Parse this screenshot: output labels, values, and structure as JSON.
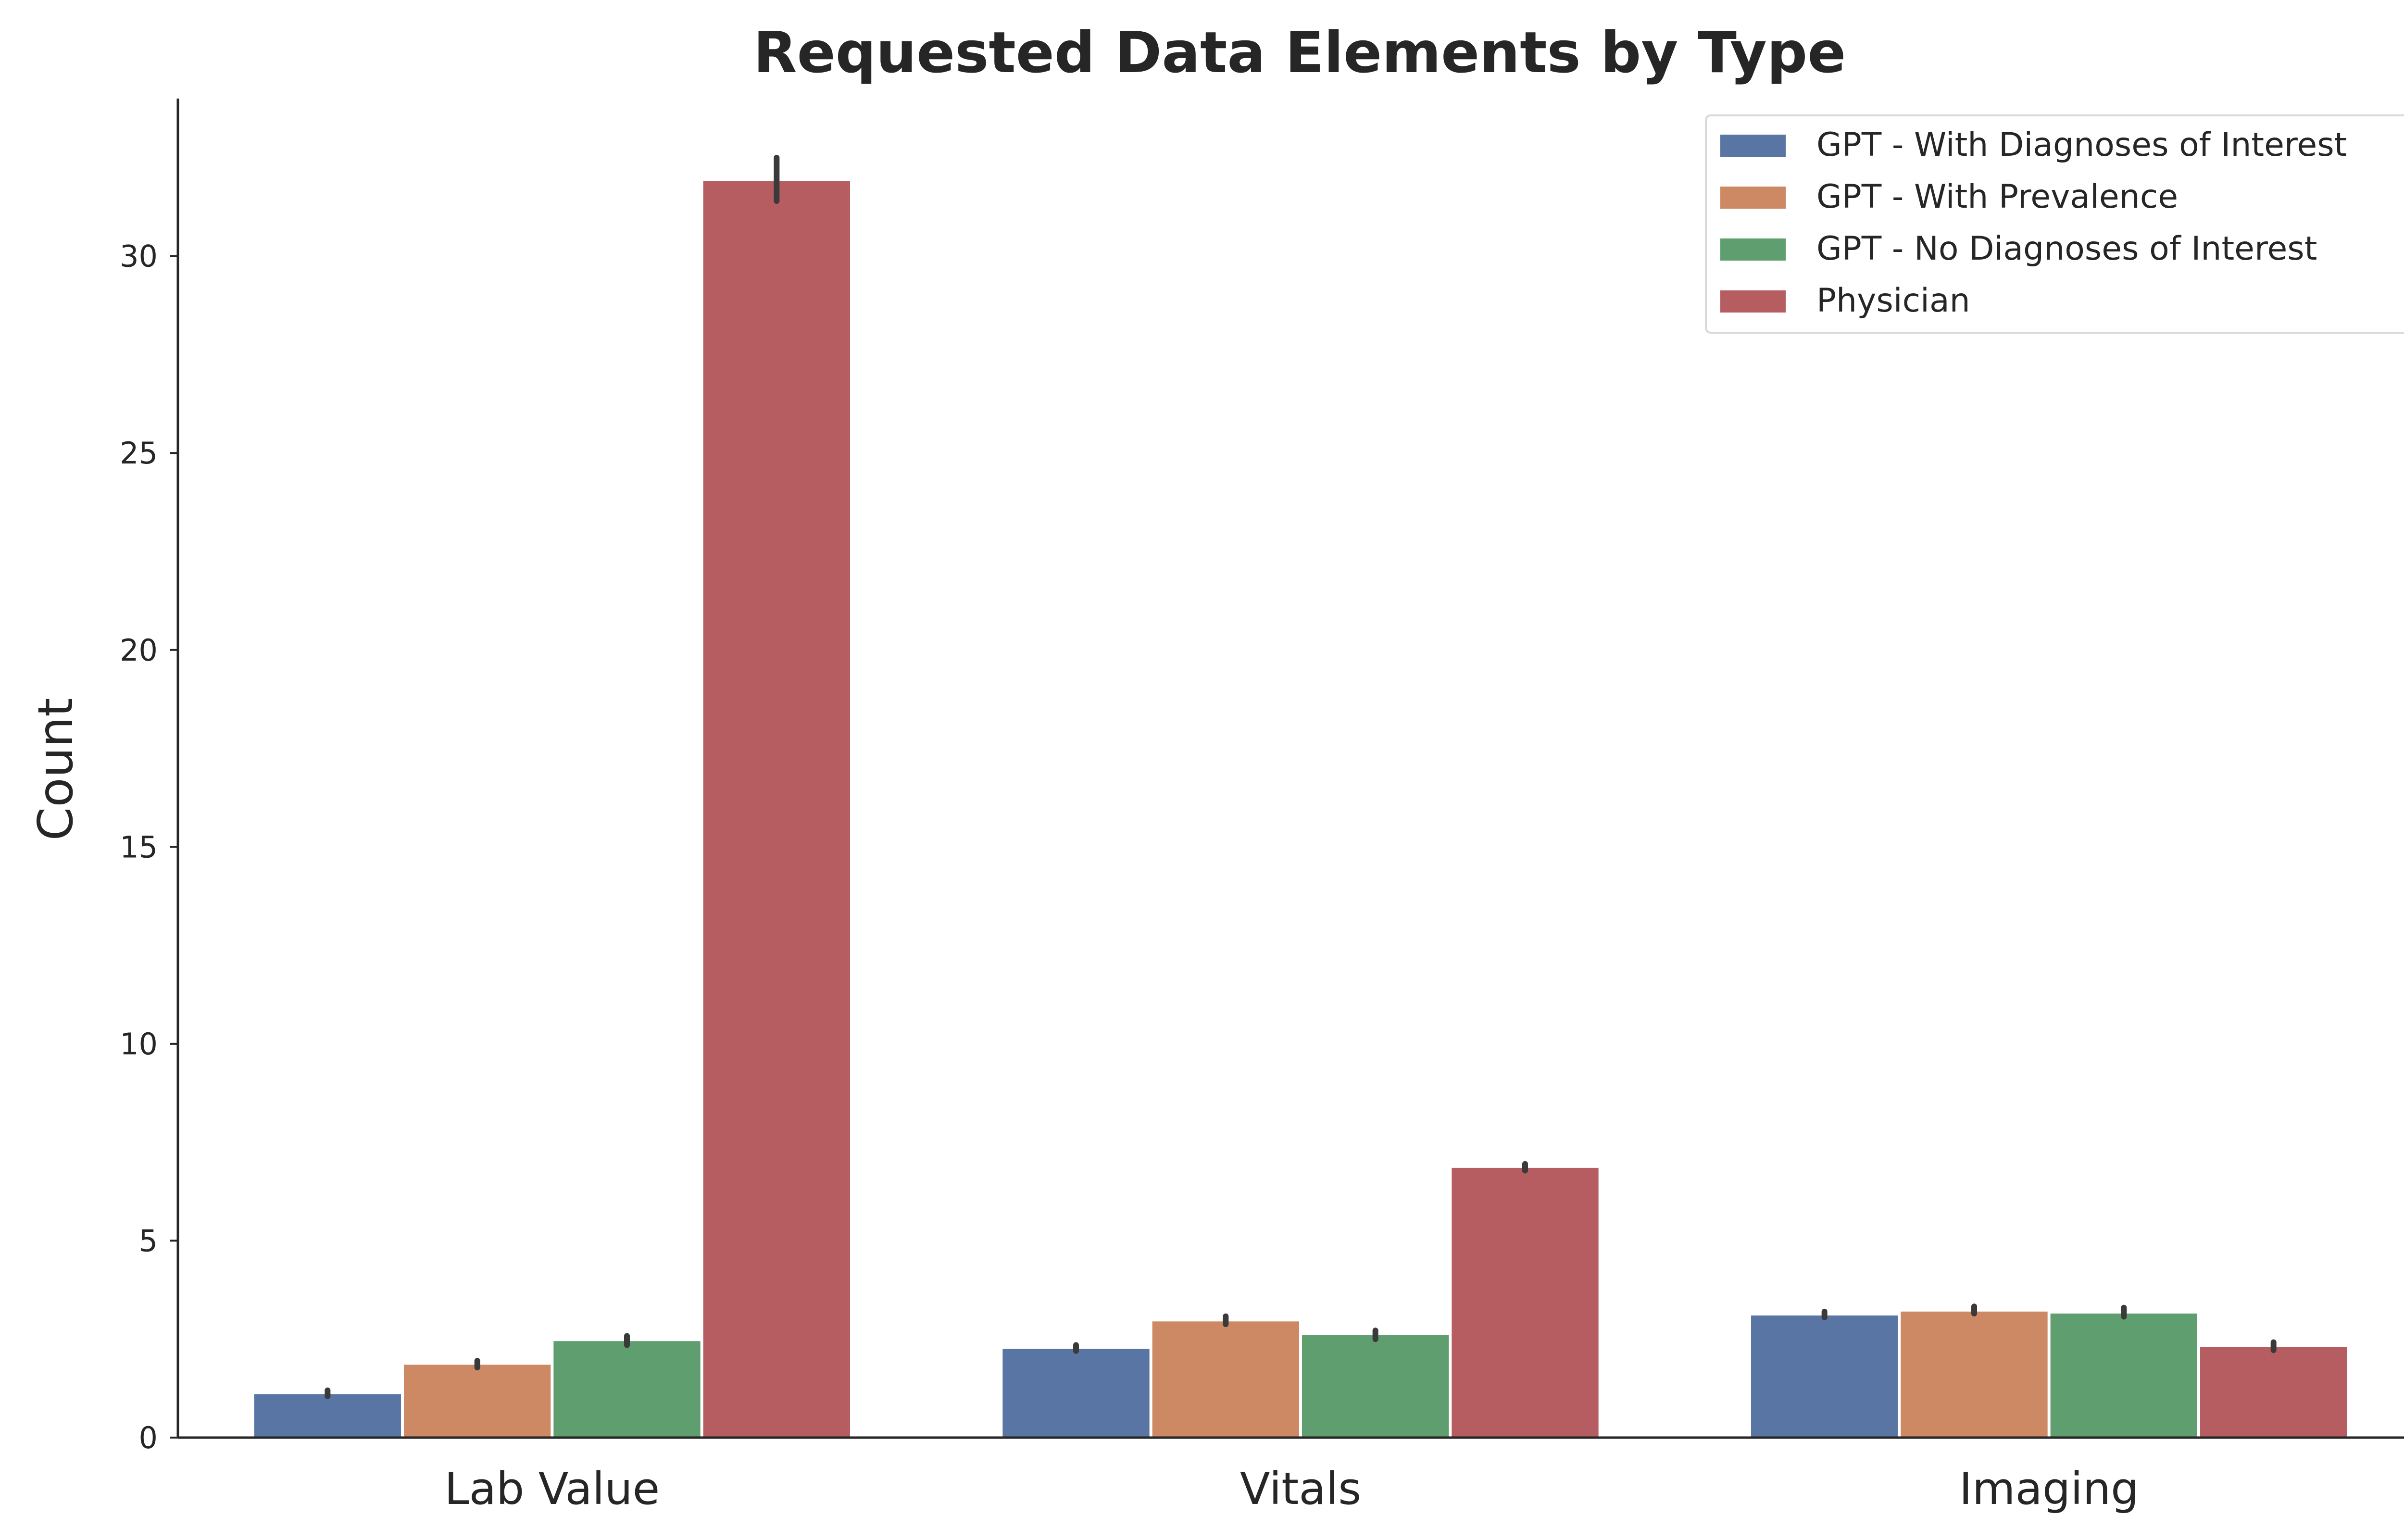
{
  "chart_data": {
    "type": "bar",
    "title": "Requested Data Elements by Type",
    "xlabel": "",
    "ylabel": "Count",
    "categories": [
      "Lab Value",
      "Vitals",
      "Imaging"
    ],
    "ylim": [
      0,
      34
    ],
    "yticks": [
      0,
      5,
      10,
      15,
      20,
      25,
      30
    ],
    "grid": false,
    "legend_position": "top-right",
    "series": [
      {
        "name": "GPT - With Diagnoses of Interest",
        "color": "#5875a4",
        "values": [
          1.1,
          2.25,
          3.1
        ],
        "err_low": [
          1.05,
          2.2,
          3.05
        ],
        "err_high": [
          1.2,
          2.35,
          3.2
        ]
      },
      {
        "name": "GPT - With Prevalence",
        "color": "#cc8963",
        "values": [
          1.85,
          2.95,
          3.2
        ],
        "err_low": [
          1.78,
          2.88,
          3.15
        ],
        "err_high": [
          1.95,
          3.08,
          3.33
        ]
      },
      {
        "name": "GPT - No Diagnoses of Interest",
        "color": "#5f9e6e",
        "values": [
          2.45,
          2.6,
          3.15
        ],
        "err_low": [
          2.35,
          2.5,
          3.07
        ],
        "err_high": [
          2.58,
          2.72,
          3.3
        ]
      },
      {
        "name": "Physician",
        "color": "#b55d60",
        "values": [
          31.9,
          6.85,
          2.3
        ],
        "err_low": [
          31.4,
          6.78,
          2.22
        ],
        "err_high": [
          32.5,
          6.95,
          2.42
        ]
      }
    ]
  }
}
